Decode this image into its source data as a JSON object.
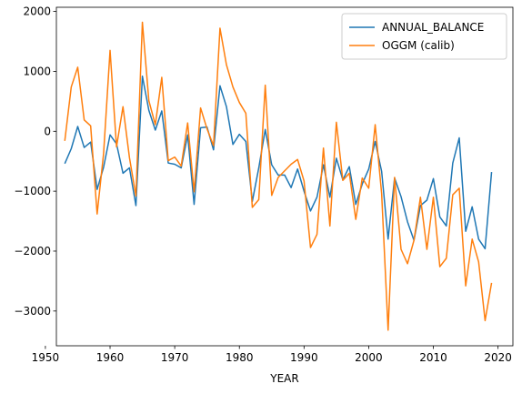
{
  "chart_data": {
    "type": "line",
    "title": "",
    "xlabel": "YEAR",
    "ylabel": "",
    "xlim": [
      1951.7,
      2022.3
    ],
    "ylim": [
      -3580,
      2070
    ],
    "xticks": [
      1950,
      1960,
      1970,
      1980,
      1990,
      2000,
      2010,
      2020
    ],
    "yticks": [
      -3000,
      -2000,
      -1000,
      0,
      1000,
      2000
    ],
    "ytick_labels": [
      "−3000",
      "−2000",
      "−1000",
      "0",
      "1000",
      "2000"
    ],
    "grid": false,
    "legend_position": "top-right",
    "series": [
      {
        "name": "ANNUAL_BALANCE",
        "color": "#1f77b4",
        "x": [
          1953,
          1954,
          1955,
          1956,
          1957,
          1958,
          1959,
          1960,
          1961,
          1962,
          1963,
          1964,
          1965,
          1966,
          1967,
          1968,
          1969,
          1970,
          1971,
          1972,
          1973,
          1974,
          1975,
          1976,
          1977,
          1978,
          1979,
          1980,
          1981,
          1982,
          1983,
          1984,
          1985,
          1986,
          1987,
          1988,
          1989,
          1990,
          1991,
          1992,
          1993,
          1994,
          1995,
          1996,
          1997,
          1998,
          1999,
          2000,
          2001,
          2002,
          2003,
          2004,
          2005,
          2006,
          2007,
          2008,
          2009,
          2010,
          2011,
          2012,
          2013,
          2014,
          2015,
          2016,
          2017,
          2018,
          2019
        ],
        "values": [
          -540,
          -290,
          80,
          -270,
          -180,
          -970,
          -600,
          -60,
          -210,
          -700,
          -610,
          -1240,
          920,
          350,
          20,
          340,
          -530,
          -550,
          -610,
          -60,
          -1220,
          60,
          70,
          -310,
          760,
          410,
          -220,
          -50,
          -170,
          -1170,
          -610,
          30,
          -560,
          -730,
          -730,
          -940,
          -630,
          -1000,
          -1330,
          -1100,
          -560,
          -1100,
          -450,
          -810,
          -590,
          -1220,
          -880,
          -630,
          -170,
          -670,
          -1800,
          -780,
          -1090,
          -1510,
          -1820,
          -1240,
          -1150,
          -790,
          -1430,
          -1580,
          -530,
          -110,
          -1670,
          -1260,
          -1800,
          -1960,
          -680
        ]
      },
      {
        "name": "OGGM (calib)",
        "color": "#ff7f0e",
        "x": [
          1953,
          1954,
          1955,
          1956,
          1957,
          1958,
          1959,
          1960,
          1961,
          1962,
          1963,
          1964,
          1965,
          1966,
          1967,
          1968,
          1969,
          1970,
          1971,
          1972,
          1973,
          1974,
          1975,
          1976,
          1977,
          1978,
          1979,
          1980,
          1981,
          1982,
          1983,
          1984,
          1985,
          1986,
          1987,
          1988,
          1989,
          1990,
          1991,
          1992,
          1993,
          1994,
          1995,
          1996,
          1997,
          1998,
          1999,
          2000,
          2001,
          2002,
          2003,
          2004,
          2005,
          2006,
          2007,
          2008,
          2009,
          2010,
          2011,
          2012,
          2013,
          2014,
          2015,
          2016,
          2017,
          2018,
          2019
        ],
        "values": [
          -160,
          740,
          1070,
          190,
          90,
          -1380,
          -370,
          1350,
          -260,
          410,
          -440,
          -1080,
          1820,
          510,
          110,
          900,
          -490,
          -430,
          -580,
          140,
          -1010,
          390,
          40,
          -240,
          1720,
          1110,
          740,
          480,
          300,
          -1270,
          -1140,
          770,
          -1070,
          -770,
          -660,
          -550,
          -470,
          -830,
          -1940,
          -1720,
          -280,
          -1580,
          150,
          -820,
          -700,
          -1470,
          -780,
          -950,
          110,
          -1040,
          -3320,
          -770,
          -1970,
          -2210,
          -1820,
          -1100,
          -1970,
          -1100,
          -2260,
          -2120,
          -1060,
          -950,
          -2580,
          -1800,
          -2180,
          -3160,
          -2530
        ]
      }
    ]
  }
}
